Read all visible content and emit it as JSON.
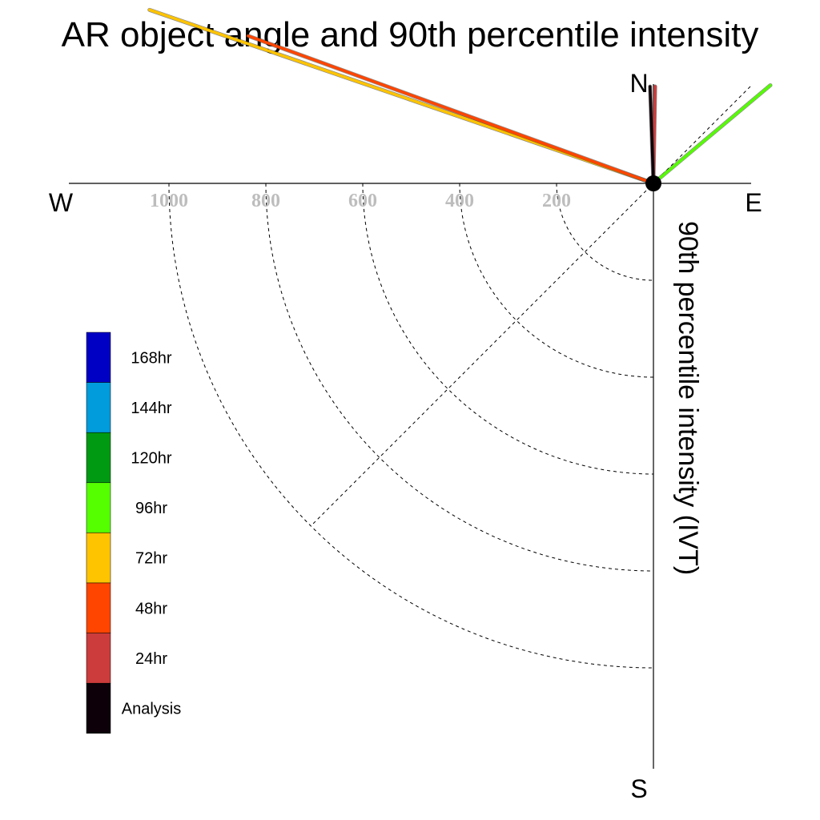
{
  "chart_data": {
    "type": "polar-line",
    "title": "AR object angle and 90th percentile intensity",
    "ylabel": "90th percentile intensity (IVT)",
    "compass": {
      "north": "N",
      "east": "E",
      "south": "S",
      "west": "W"
    },
    "radial_ticks": [
      {
        "value": 200,
        "label": "200"
      },
      {
        "value": 400,
        "label": "400"
      },
      {
        "value": 600,
        "label": "600"
      },
      {
        "value": 800,
        "label": "800"
      },
      {
        "value": 1000,
        "label": "1000"
      }
    ],
    "radial_range": [
      0,
      1000
    ],
    "series": [
      {
        "name": "Analysis",
        "color": "#0d0008",
        "angle_deg": 2,
        "intensity": 200
      },
      {
        "name": "24hr",
        "color": "#cc3c3c",
        "angle_deg": -1,
        "intensity": 200
      },
      {
        "name": "48hr",
        "color": "#ff4500",
        "angle_deg": 70,
        "intensity": 890
      },
      {
        "name": "72hr",
        "color": "#ffc400",
        "angle_deg": 71,
        "intensity": 1100
      },
      {
        "name": "96hr",
        "color": "#55ff00",
        "angle_deg": -50,
        "intensity": 315
      }
    ],
    "legend": [
      {
        "label": "168hr",
        "color": "#0000c4"
      },
      {
        "label": "144hr",
        "color": "#009cdc"
      },
      {
        "label": "120hr",
        "color": "#009a12"
      },
      {
        "label": "96hr",
        "color": "#55ff00"
      },
      {
        "label": "72hr",
        "color": "#ffc400"
      },
      {
        "label": "48hr",
        "color": "#ff4500"
      },
      {
        "label": "24hr",
        "color": "#cc3c3c"
      },
      {
        "label": "Analysis",
        "color": "#0d0008"
      }
    ]
  }
}
